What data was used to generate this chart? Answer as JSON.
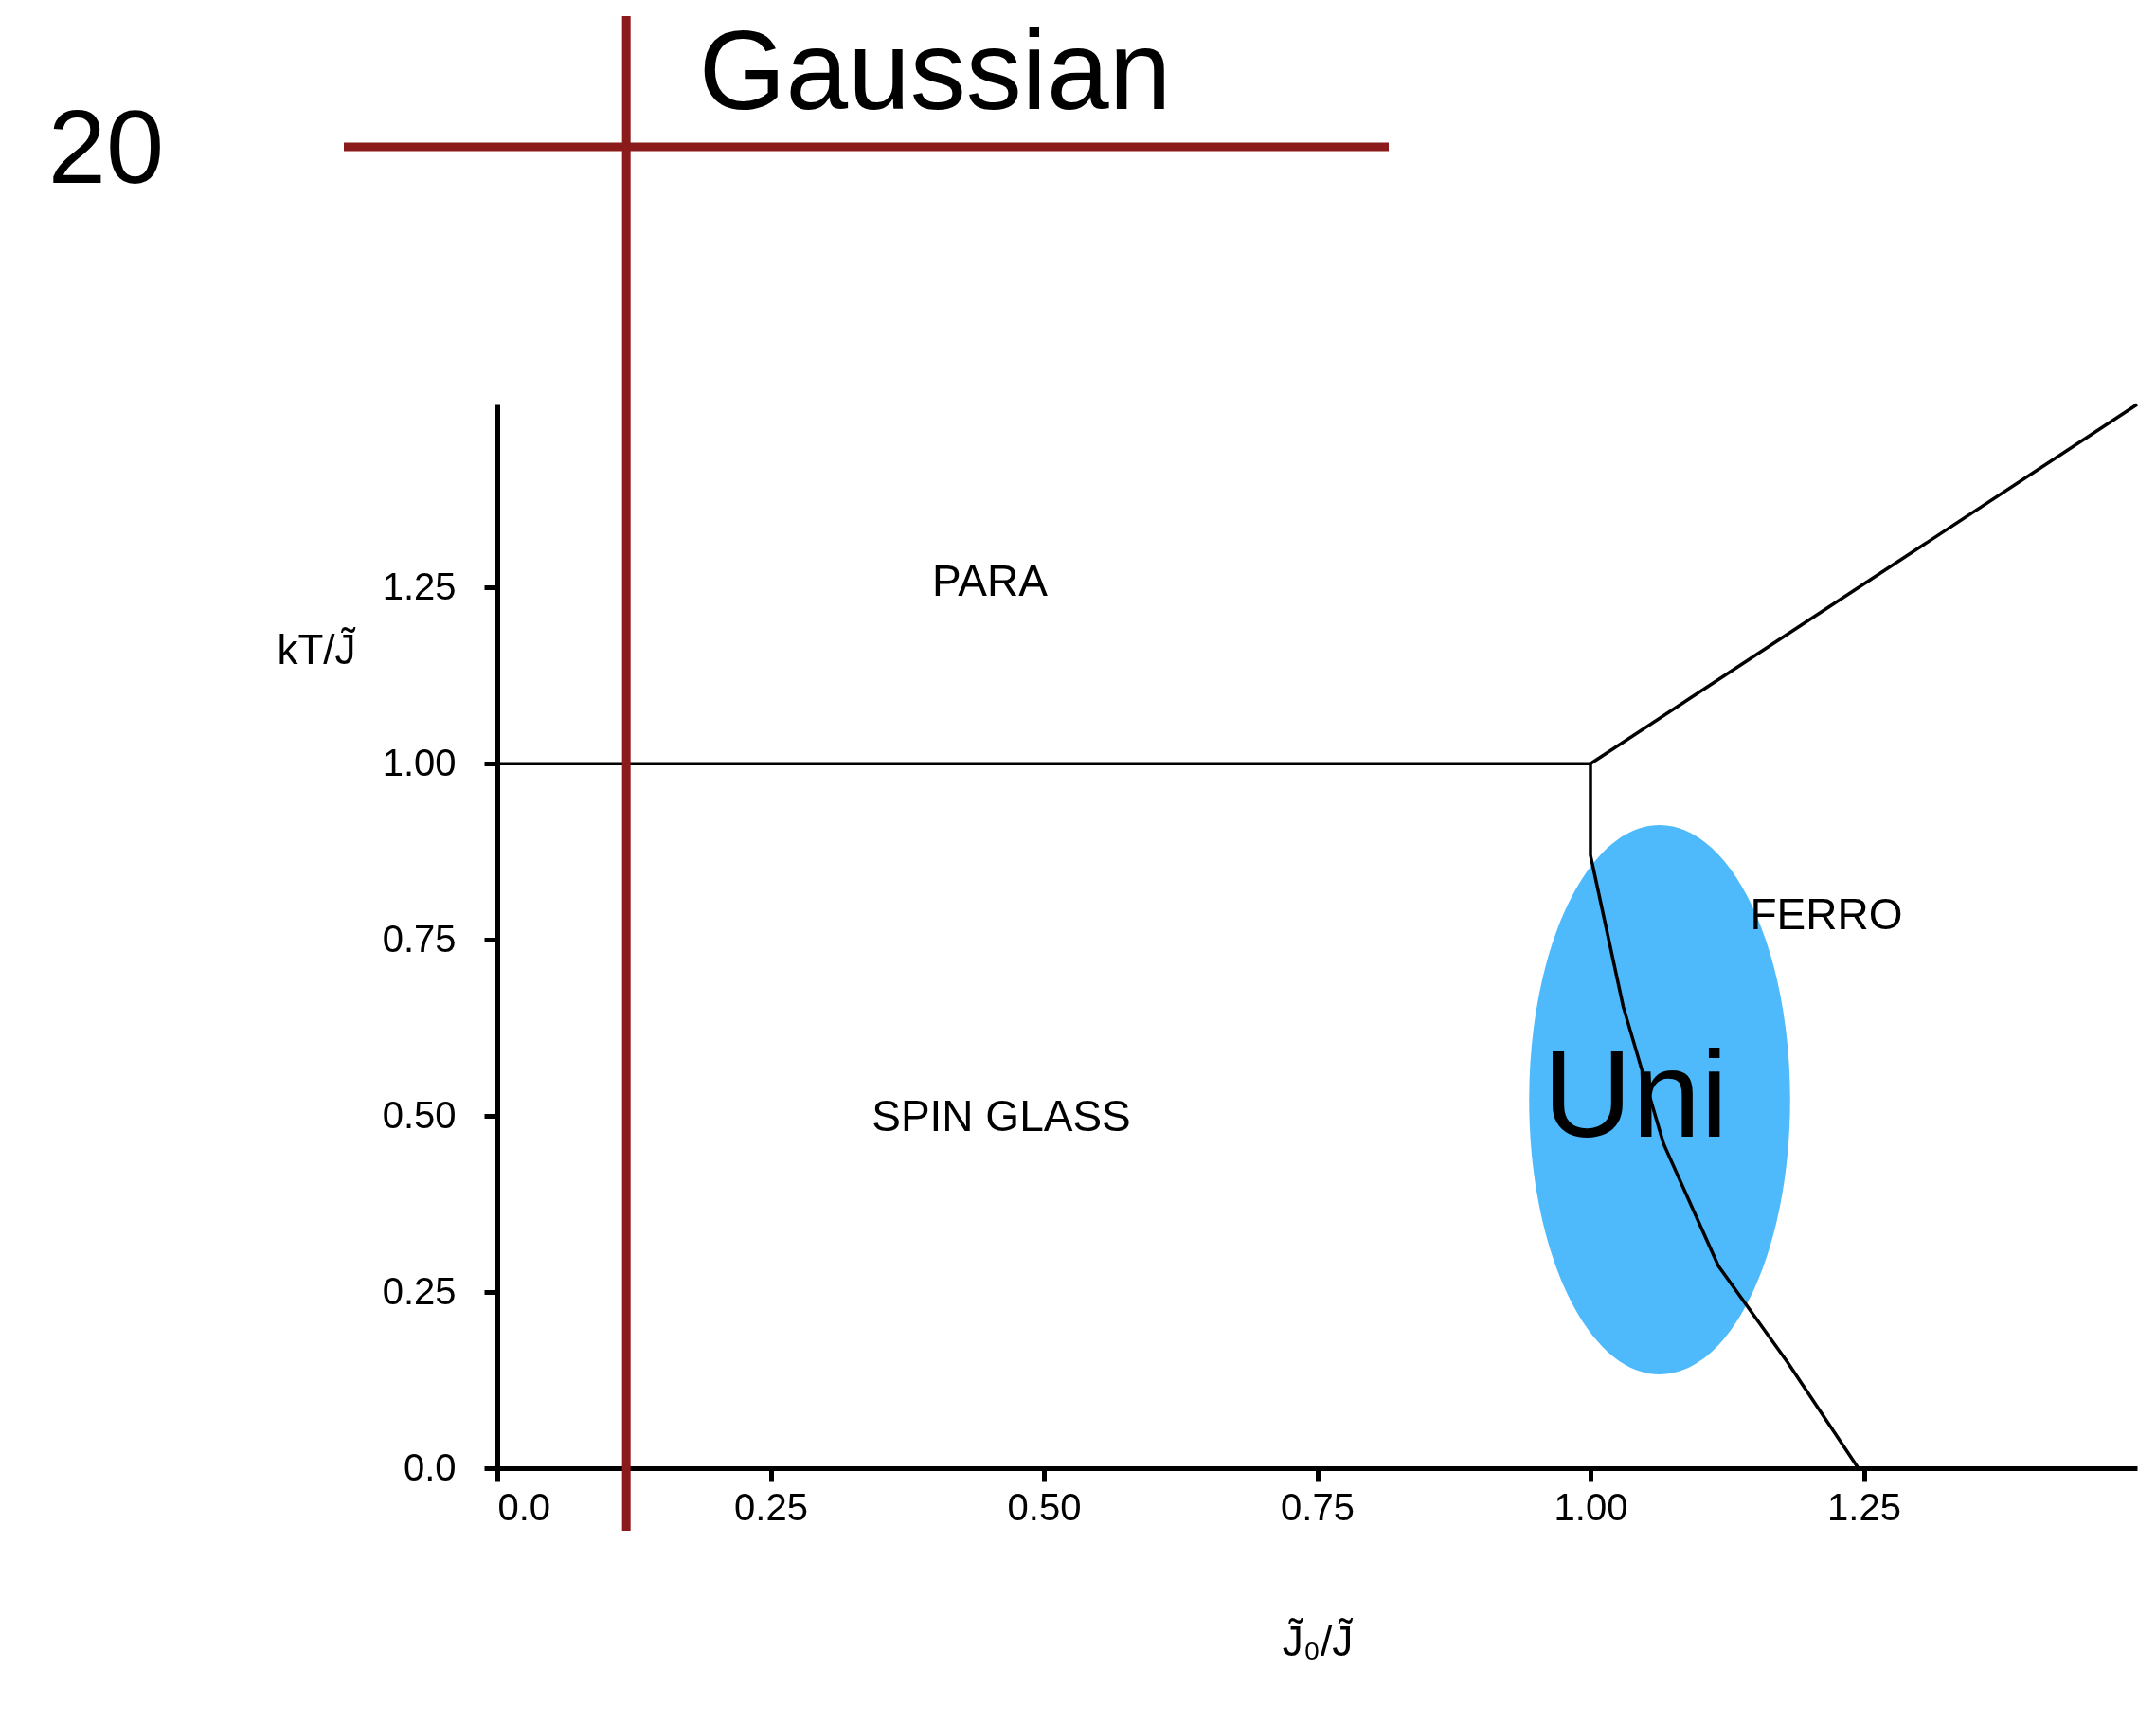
{
  "chart_data": {
    "type": "line",
    "title": "Gaussian",
    "xlabel": "J̃₀/J̃",
    "ylabel": "kT/J̃",
    "xlim": [
      0,
      1.5
    ],
    "ylim": [
      0,
      1.51
    ],
    "xticks": [
      {
        "value": 0,
        "label": "0.0"
      },
      0.25,
      {
        "value": 0.5,
        "label": "0.50"
      },
      0.75,
      {
        "value": 1,
        "label": "1.00"
      },
      1.25
    ],
    "yticks": [
      {
        "value": 0,
        "label": "0.0"
      },
      0.25,
      {
        "value": 0.5,
        "label": "0.50"
      },
      0.75,
      {
        "value": 1,
        "label": "1.00"
      },
      1.25
    ],
    "series": [
      {
        "color": "#000000",
        "x": [
          0,
          1.0
        ],
        "values": [
          1.0,
          1.0
        ]
      },
      {
        "color": "#000000",
        "x": [
          1.0,
          1.5
        ],
        "values": [
          1.0,
          1.51
        ]
      },
      {
        "color": "#000000",
        "x": [
          1.0,
          1.0,
          1.03,
          1.067,
          1.117,
          1.18,
          1.245
        ],
        "values": [
          1.0,
          0.87,
          0.655,
          0.46,
          0.287,
          0.151,
          0.0
        ]
      }
    ],
    "ref_lines": [
      {
        "axis": "x",
        "value": 0.118,
        "color": "#8b1a1a"
      }
    ],
    "annotations": [
      "20",
      "PARA",
      "SPIN GLASS",
      "FERRO",
      "Uni"
    ],
    "grid": false,
    "marker": "none",
    "line_style": "solid"
  }
}
